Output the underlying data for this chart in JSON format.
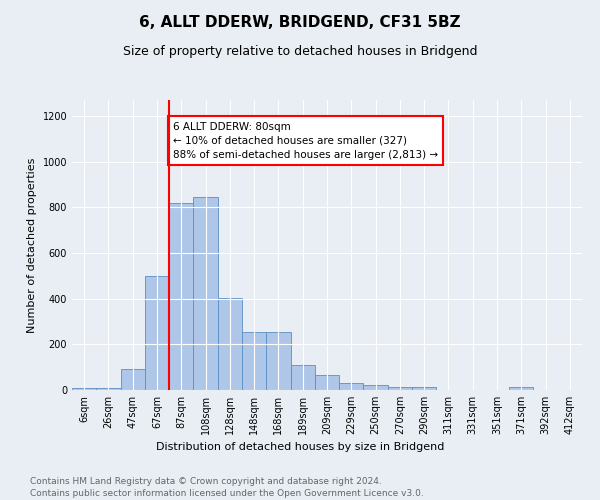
{
  "title": "6, ALLT DDERW, BRIDGEND, CF31 5BZ",
  "subtitle": "Size of property relative to detached houses in Bridgend",
  "xlabel": "Distribution of detached houses by size in Bridgend",
  "ylabel": "Number of detached properties",
  "footnote1": "Contains HM Land Registry data © Crown copyright and database right 2024.",
  "footnote2": "Contains public sector information licensed under the Open Government Licence v3.0.",
  "bar_labels": [
    "6sqm",
    "26sqm",
    "47sqm",
    "67sqm",
    "87sqm",
    "108sqm",
    "128sqm",
    "148sqm",
    "168sqm",
    "189sqm",
    "209sqm",
    "229sqm",
    "250sqm",
    "270sqm",
    "290sqm",
    "311sqm",
    "331sqm",
    "351sqm",
    "371sqm",
    "392sqm",
    "412sqm"
  ],
  "bar_values": [
    10,
    10,
    90,
    500,
    820,
    845,
    405,
    255,
    255,
    110,
    65,
    32,
    20,
    13,
    13,
    1,
    1,
    1,
    13,
    1,
    1
  ],
  "bar_color": "#aec6e8",
  "bar_edge_color": "#5a8fc4",
  "annotation_text": "6 ALLT DDERW: 80sqm\n← 10% of detached houses are smaller (327)\n88% of semi-detached houses are larger (2,813) →",
  "annotation_box_color": "white",
  "annotation_box_edge": "red",
  "red_line_bin_index": 4,
  "ylim": [
    0,
    1270
  ],
  "yticks": [
    0,
    200,
    400,
    600,
    800,
    1000,
    1200
  ],
  "bg_color": "#e8eef4",
  "plot_bg_color": "#e8eef4",
  "title_fontsize": 11,
  "subtitle_fontsize": 9,
  "axis_label_fontsize": 8,
  "tick_fontsize": 7,
  "footnote_fontsize": 6.5
}
